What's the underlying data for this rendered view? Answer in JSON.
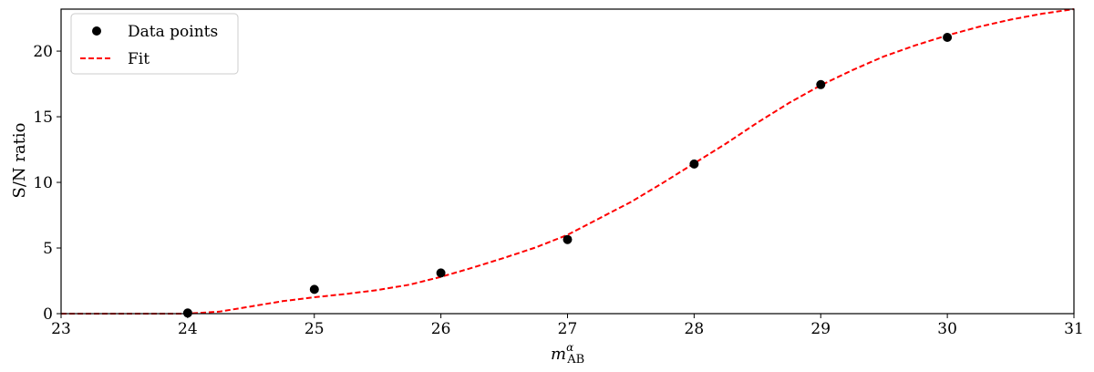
{
  "chart_data": {
    "type": "scatter",
    "title": "",
    "xlabel": "m",
    "xlabel_sub": "AB",
    "xlabel_sup": "α",
    "ylabel": "S/N ratio",
    "xlim": [
      23,
      31
    ],
    "ylim": [
      0,
      23.2
    ],
    "xticks": [
      23,
      24,
      25,
      26,
      27,
      28,
      29,
      30,
      31
    ],
    "yticks": [
      0,
      5,
      10,
      15,
      20
    ],
    "grid": false,
    "legend_position": "upper-left",
    "series": [
      {
        "name": "Data points",
        "type": "scatter",
        "color": "#000000",
        "x": [
          24,
          25,
          26,
          27,
          28,
          29,
          30
        ],
        "y": [
          0.05,
          1.85,
          3.1,
          5.65,
          11.4,
          17.45,
          21.05
        ]
      },
      {
        "name": "Fit",
        "type": "line",
        "style": "dashed",
        "color": "#ff0000",
        "x": [
          23.0,
          23.5,
          24.0,
          24.25,
          24.5,
          24.75,
          25.0,
          25.25,
          25.5,
          25.75,
          26.0,
          26.25,
          26.5,
          26.75,
          27.0,
          27.25,
          27.5,
          27.75,
          28.0,
          28.25,
          28.5,
          28.75,
          29.0,
          29.25,
          29.5,
          29.75,
          30.0,
          30.25,
          30.5,
          30.75,
          31.0
        ],
        "y": [
          0.0,
          0.0,
          0.0,
          0.15,
          0.55,
          0.95,
          1.25,
          1.5,
          1.8,
          2.2,
          2.8,
          3.5,
          4.25,
          5.05,
          6.0,
          7.25,
          8.5,
          9.95,
          11.45,
          12.95,
          14.55,
          16.05,
          17.4,
          18.55,
          19.6,
          20.45,
          21.2,
          21.85,
          22.4,
          22.85,
          23.2
        ]
      }
    ]
  }
}
